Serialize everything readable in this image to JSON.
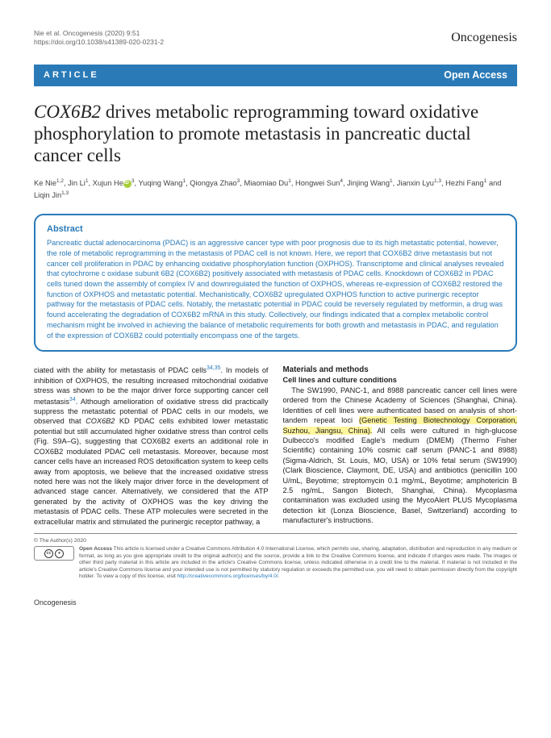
{
  "header": {
    "citation_line1": "Nie et al. Oncogenesis (2020) 9:51",
    "citation_line2": "https://doi.org/10.1038/s41389-020-0231-2",
    "journal": "Oncogenesis"
  },
  "bar": {
    "article_label": "ARTICLE",
    "open_access": "Open Access"
  },
  "title_pre": "COX6B2",
  "title_post": " drives metabolic reprogramming toward oxidative phosphorylation to promote metastasis in pancreatic ductal cancer cells",
  "authors_html": "Ke Nie<sup>1,2</sup>, Jin Li<sup>1</sup>, Xujun He<span class='orcid'></span><sup>3</sup>, Yuqing Wang<sup>1</sup>, Qiongya Zhao<sup>3</sup>, Miaomiao Du<sup>1</sup>, Hongwei Sun<sup>4</sup>, Jinjing Wang<sup>1</sup>, Jianxin Lyu<sup>1,3</sup>, Hezhi Fang<sup>1</sup> and Liqin Jin<sup>1,3</sup>",
  "abstract": {
    "heading": "Abstract",
    "body": "Pancreatic ductal adenocarcinoma (PDAC) is an aggressive cancer type with poor prognosis due to its high metastatic potential, however, the role of metabolic reprogramming in the metastasis of PDAC cell is not known. Here, we report that COX6B2 drive metastasis but not cancer cell proliferation in PDAC by enhancing oxidative phosphorylation function (OXPHOS). Transcriptome and clinical analyses revealed that cytochrome c oxidase subunit 6B2 (COX6B2) positively associated with metastasis of PDAC cells. Knockdown of COX6B2 in PDAC cells tuned down the assembly of complex IV and downregulated the function of OXPHOS, whereas re-expression of COX6B2 restored the function of OXPHOS and metastatic potential. Mechanistically, COX6B2 upregulated OXPHOS function to active purinergic receptor pathway for the metastasis of PDAC cells. Notably, the metastatic potential in PDAC could be reversely regulated by metformin, a drug was found accelerating the degradation of COX6B2 mRNA in this study. Collectively, our findings indicated that a complex metabolic control mechanism might be involved in achieving the balance of metabolic requirements for both growth and metastasis in PDAC, and regulation of the expression of COX6B2 could potentially encompass one of the targets."
  },
  "left_col": "ciated with the ability for metastasis of PDAC cells<span class='ref'>34,35</span>. In models of inhibition of OXPHOS, the resulting increased mitochondrial oxidative stress was shown to be the major driver force supporting cancer cell metastasis<span class='ref'>34</span>. Although amelioration of oxidative stress did practically suppress the metastatic potential of PDAC cells in our models, we observed that <span class='em'>COX6B2</span> KD PDAC cells exhibited lower metastatic potential but still accumulated higher oxidative stress than control cells (Fig. S9A–G), suggesting that COX6B2 exerts an additional role in COX6B2 modulated PDAC cell metastasis. Moreover, because most cancer cells have an increased ROS detoxification system to keep cells away from apoptosis, we believe that the increased oxidative stress noted here was not the likely major driver force in the development of advanced stage cancer. Alternatively, we considered that the ATP generated by the activity of OXPHOS was the key driving the metastasis of PDAC cells. These ATP molecules were secreted in the extracellular matrix and stimulated the purinergic receptor pathway, a",
  "methods": {
    "heading": "Materials and methods",
    "subheading": "Cell lines and culture conditions",
    "body": "&nbsp;&nbsp;&nbsp;The SW1990, PANC-1, and 8988 pancreatic cancer cell lines were ordered from the Chinese Academy of Sciences (Shanghai, China). Identities of cell lines were authenticated based on analysis of short-tandem repeat loci <span class='hl'>(Genetic Testing Biotechnology Corporation, Suzhou, Jiangsu, China).</span> All cells were cultured in high-glucose Dulbecco's modified Eagle's medium (DMEM) (Thermo Fisher Scientific) containing 10% cosmic calf serum (PANC-1 and 8988) (Sigma-Aldrich, St. Louis, MO, USA) or 10% fetal serum (SW1990) (Clark Bioscience, Claymont, DE, USA) and antibiotics (penicillin 100 U/mL, Beyotime; streptomycin 0.1 mg/mL, Beyotime; amphotericin B 2.5 ng/mL, Sangon Biotech, Shanghai, China). Mycoplasma contamination was excluded using the MycoAlert PLUS Mycoplasma detection kit (Lonza Bioscience, Basel, Switzerland) according to manufacturer's instructions."
  },
  "footer": {
    "copyright": "© The Author(s) 2020",
    "license_text": "<b>Open Access</b> This article is licensed under a Creative Commons Attribution 4.0 International License, which permits use, sharing, adaptation, distribution and reproduction in any medium or format, as long as you give appropriate credit to the original author(s) and the source, provide a link to the Creative Commons license, and indicate if changes were made. The images or other third party material in this article are included in the article's Creative Commons license, unless indicated otherwise in a credit line to the material. If material is not included in the article's Creative Commons license and your intended use is not permitted by statutory regulation or exceeds the permitted use, you will need to obtain permission directly from the copyright holder. To view a copy of this license, visit <span class='link'>http://creativecommons.org/licenses/by/4.0/</span>.",
    "journal_footer": "Oncogenesis"
  }
}
